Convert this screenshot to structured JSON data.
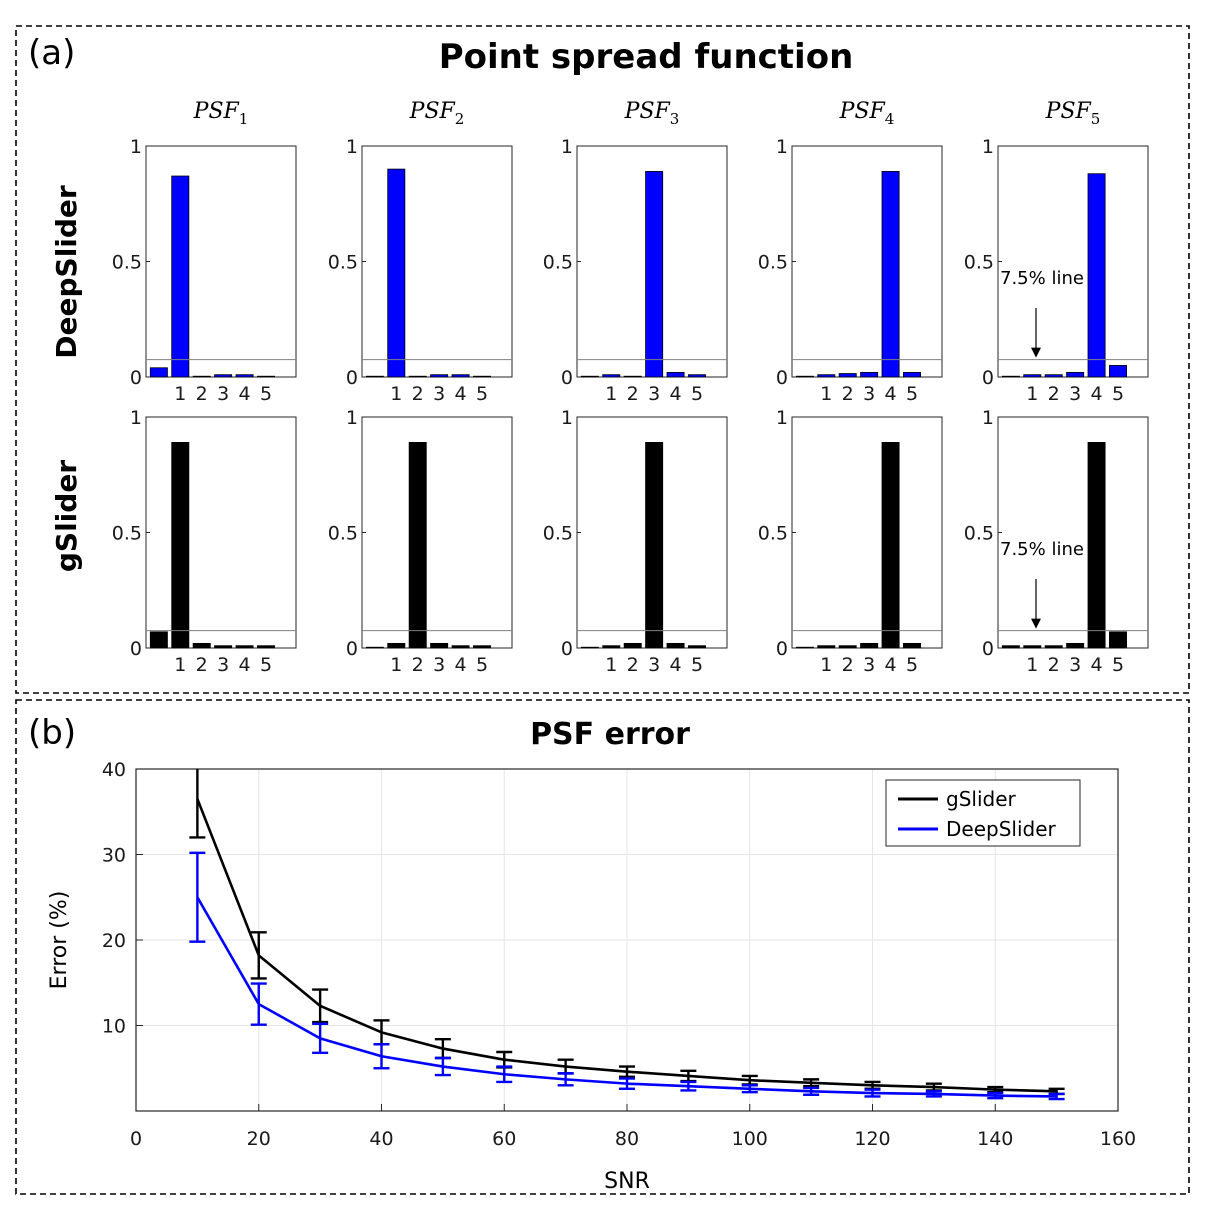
{
  "panel_a": {
    "label": "(a)",
    "title": "Point spread function"
  },
  "panel_b": {
    "label": "(b)",
    "title": "PSF error"
  },
  "colors": {
    "deepslider": "#0000ff",
    "gslider": "#000000",
    "grid": "#e6e6e6",
    "threshold_line": "#808080"
  },
  "chart_data": [
    {
      "type": "bar",
      "name": "psf-grid",
      "column_titles": [
        "PSF1",
        "PSF2",
        "PSF3",
        "PSF4",
        "PSF5"
      ],
      "rows": [
        {
          "label": "DeepSlider",
          "color_key": "deepslider",
          "panels": [
            [
              0.04,
              0.87,
              0.0,
              0.01,
              0.01,
              0.0
            ],
            [
              0.0,
              0.9,
              0.0,
              0.01,
              0.01,
              0.0
            ],
            [
              0.0,
              0.01,
              0.0,
              0.89,
              0.02,
              0.01
            ],
            [
              0.0,
              0.01,
              0.015,
              0.02,
              0.89,
              0.02
            ],
            [
              0.0,
              0.01,
              0.01,
              0.02,
              0.88,
              0.05
            ]
          ]
        },
        {
          "label": "gSlider",
          "color_key": "gslider",
          "panels": [
            [
              0.07,
              0.89,
              0.02,
              0.01,
              0.01,
              0.01
            ],
            [
              0.0,
              0.02,
              0.89,
              0.02,
              0.01,
              0.01
            ],
            [
              0.0,
              0.01,
              0.02,
              0.89,
              0.02,
              0.01
            ],
            [
              0.0,
              0.01,
              0.01,
              0.02,
              0.89,
              0.02
            ],
            [
              0.01,
              0.01,
              0.01,
              0.02,
              0.89,
              0.07
            ]
          ]
        }
      ],
      "bar_positions": [
        0,
        1,
        2,
        3,
        4,
        5
      ],
      "xtick_labels": [
        "1",
        "2",
        "3",
        "4",
        "5"
      ],
      "xtick_positions": [
        1,
        2,
        3,
        4,
        5
      ],
      "ylim": [
        0,
        1
      ],
      "yticks": [
        0,
        0.5,
        1
      ],
      "ytick_labels": [
        "0",
        "0.5",
        "1"
      ],
      "threshold": 0.075,
      "threshold_annotation": "7.5% line"
    },
    {
      "type": "line",
      "name": "psf-error",
      "title": "PSF error",
      "xlabel": "SNR",
      "ylabel": "Error (%)",
      "xlim": [
        0,
        160
      ],
      "ylim": [
        0,
        40
      ],
      "xticks": [
        0,
        20,
        40,
        60,
        80,
        100,
        120,
        140,
        160
      ],
      "yticks": [
        10,
        20,
        30,
        40
      ],
      "grid": true,
      "legend_position": "top-right",
      "x": [
        10,
        20,
        30,
        40,
        50,
        60,
        70,
        80,
        90,
        100,
        110,
        120,
        130,
        140,
        150
      ],
      "series": [
        {
          "name": "gSlider",
          "color_key": "gslider",
          "values": [
            36.5,
            18.2,
            12.3,
            9.2,
            7.3,
            6.0,
            5.2,
            4.6,
            4.1,
            3.6,
            3.3,
            3.0,
            2.8,
            2.5,
            2.3
          ],
          "errors": [
            4.5,
            2.7,
            1.9,
            1.4,
            1.1,
            0.9,
            0.8,
            0.6,
            0.6,
            0.5,
            0.4,
            0.4,
            0.4,
            0.3,
            0.3
          ]
        },
        {
          "name": "DeepSlider",
          "color_key": "deepslider",
          "values": [
            25.0,
            12.5,
            8.5,
            6.4,
            5.2,
            4.3,
            3.7,
            3.2,
            2.9,
            2.6,
            2.3,
            2.1,
            2.0,
            1.8,
            1.7
          ],
          "errors": [
            5.2,
            2.4,
            1.7,
            1.4,
            1.0,
            0.9,
            0.7,
            0.6,
            0.5,
            0.4,
            0.4,
            0.4,
            0.3,
            0.3,
            0.3
          ]
        }
      ]
    }
  ]
}
